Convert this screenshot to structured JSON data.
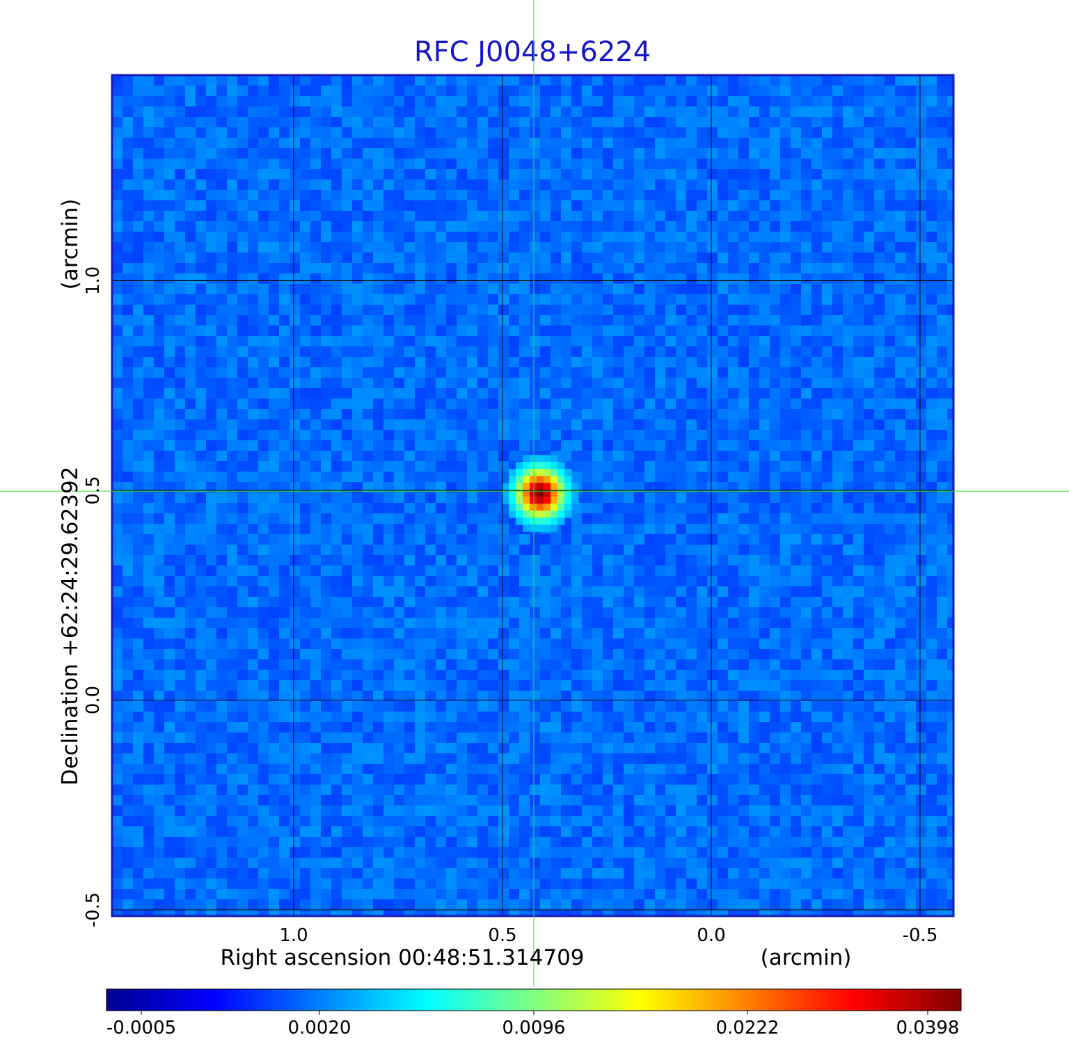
{
  "chart_data": {
    "type": "heatmap",
    "title": "RFC J0048+6224",
    "xlabel": "Right ascension  00:48:51.314709",
    "xunit": "(arcmin)",
    "ylabel": "Declination  +62:24:29.62392",
    "yunit": "(arcmin)",
    "x_ticks": [
      "1.0",
      "0.5",
      "0.0",
      "-0.5"
    ],
    "y_ticks": [
      "1.0",
      "0.5",
      "0.0",
      "-0.5"
    ],
    "x_tick_values": [
      1.0,
      0.5,
      0.0,
      -0.5
    ],
    "y_tick_values": [
      1.0,
      0.5,
      0.0,
      -0.5
    ],
    "xlim": [
      1.435,
      -0.58
    ],
    "ylim": [
      -0.515,
      1.49
    ],
    "grid": true,
    "crosshair": {
      "x": 0.425,
      "y": 0.498
    },
    "source_peak": {
      "x": 0.41,
      "y": 0.493,
      "value": 0.0398
    },
    "colorbar": {
      "ticks": [
        "-0.0005",
        "0.0020",
        "0.0096",
        "0.0222",
        "0.0398"
      ],
      "values": [
        -0.0005,
        0.002,
        0.0096,
        0.0222,
        0.0398
      ],
      "colormap": "jet"
    },
    "colors": {
      "title": "#1616c8",
      "frame": "#1a1ab4",
      "grid": "#000000",
      "crosshair": "#33dd33",
      "background_map": "#2a56ec"
    }
  }
}
